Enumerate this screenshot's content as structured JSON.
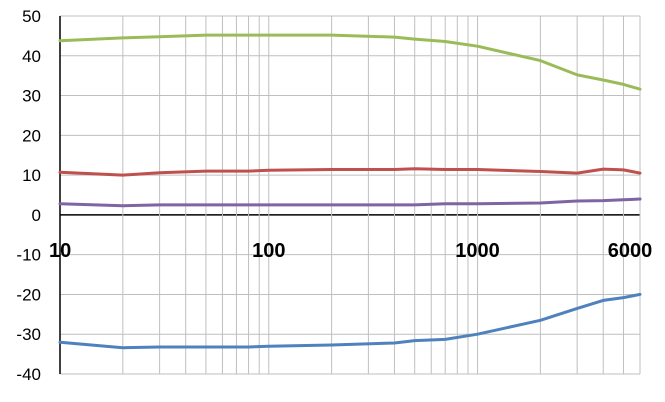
{
  "chart_data": {
    "type": "line",
    "title": "",
    "xlabel": "",
    "ylabel": "",
    "xscale": "log",
    "xlim": [
      10,
      6000
    ],
    "ylim": [
      -40,
      50
    ],
    "grid": "on",
    "legend": "none",
    "y_ticks": [
      "50",
      "40",
      "30",
      "20",
      "10",
      "0",
      "-10",
      "-20",
      "-30",
      "-40"
    ],
    "x_tick_labels": [
      {
        "value": 10,
        "label": "10"
      },
      {
        "value": 100,
        "label": "100"
      },
      {
        "value": 1000,
        "label": "1000"
      },
      {
        "value": 6000,
        "label": "6000"
      }
    ],
    "x": [
      10,
      20,
      30,
      50,
      80,
      100,
      200,
      400,
      500,
      700,
      1000,
      2000,
      3000,
      4000,
      5000,
      6000
    ],
    "series": [
      {
        "color": "#9BBB59",
        "values": [
          43.8,
          44.5,
          44.8,
          45.2,
          45.2,
          45.2,
          45.2,
          44.7,
          44.2,
          43.6,
          42.4,
          38.8,
          35.2,
          33.9,
          32.8,
          31.6
        ]
      },
      {
        "color": "#C0504D",
        "values": [
          10.7,
          10.0,
          10.6,
          11.0,
          11.0,
          11.2,
          11.4,
          11.4,
          11.6,
          11.4,
          11.4,
          10.9,
          10.5,
          11.5,
          11.3,
          10.5
        ]
      },
      {
        "color": "#8064A2",
        "values": [
          2.8,
          2.3,
          2.5,
          2.5,
          2.5,
          2.5,
          2.5,
          2.5,
          2.5,
          2.8,
          2.8,
          3.0,
          3.5,
          3.6,
          3.8,
          4.0
        ]
      },
      {
        "color": "#4F81BD",
        "values": [
          -32.0,
          -33.4,
          -33.2,
          -33.2,
          -33.2,
          -33.0,
          -32.7,
          -32.2,
          -31.6,
          -31.3,
          -30.0,
          -26.5,
          -23.5,
          -21.5,
          -20.8,
          -20.0
        ]
      }
    ],
    "colors": {
      "grid": "#BFBFBF",
      "axis": "#000000"
    }
  }
}
